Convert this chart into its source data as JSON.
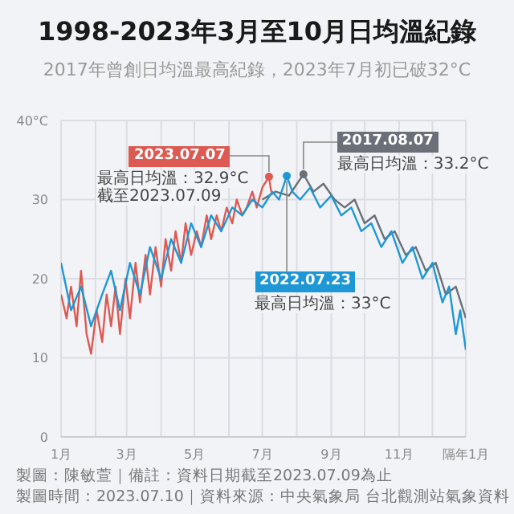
{
  "chart_data": {
    "type": "line",
    "title": "1998-2023年3月至10月日均溫紀錄",
    "subtitle": "2017年曾創日均溫最高紀錄，2023年7月初已破32°C",
    "xlim": [
      "--01-01",
      "--12-31"
    ],
    "xticks": [
      {
        "value": "--01-01",
        "label": "1月"
      },
      {
        "value": "--02-01",
        "label": null
      },
      {
        "value": "--03-01",
        "label": "3月"
      },
      {
        "value": "--04-01",
        "label": null
      },
      {
        "value": "--05-01",
        "label": "5月"
      },
      {
        "value": "--06-01",
        "label": null
      },
      {
        "value": "--07-01",
        "label": "7月"
      },
      {
        "value": "--08-01",
        "label": null
      },
      {
        "value": "--09-01",
        "label": "9月"
      },
      {
        "value": "--10-01",
        "label": null
      },
      {
        "value": "--11-01",
        "label": "11月"
      },
      {
        "value": "--12-01",
        "label": null
      },
      {
        "value": "--12-31",
        "label": "隔年1月"
      }
    ],
    "ylim": [
      0,
      40
    ],
    "yticks": [
      0,
      10,
      20,
      30,
      {
        "value": 40,
        "label": "40°C"
      }
    ],
    "grid": true,
    "marker": "none",
    "line_style": "solid",
    "series": [
      {
        "color": "#dc5a52",
        "x": [
          "--01-01",
          "--01-06",
          "--01-10",
          "--01-15",
          "--01-19",
          "--01-24",
          "--01-28",
          "--02-02",
          "--02-07",
          "--02-11",
          "--02-15",
          "--02-19",
          "--02-23",
          "--02-28",
          "--03-04",
          "--03-09",
          "--03-13",
          "--03-18",
          "--03-22",
          "--03-27",
          "--04-01",
          "--04-05",
          "--04-10",
          "--04-14",
          "--04-19",
          "--04-23",
          "--04-28",
          "--05-03",
          "--05-07",
          "--05-12",
          "--05-16",
          "--05-21",
          "--05-25",
          "--05-30",
          "--06-04",
          "--06-08",
          "--06-13",
          "--06-17",
          "--06-22",
          "--06-26",
          "--07-01",
          "--07-07",
          "--07-09"
        ],
        "values": [
          18,
          15,
          19,
          14,
          21,
          13,
          10.5,
          16,
          12,
          18,
          14,
          19,
          13,
          20,
          15,
          22,
          17,
          23,
          18,
          24,
          19,
          25,
          21,
          26,
          22,
          27,
          23,
          26,
          24,
          28,
          25,
          28,
          26,
          29,
          27,
          30,
          28,
          29,
          31,
          29,
          31.5,
          32.9,
          31
        ]
      },
      {
        "color": "#6b6f78",
        "x": [
          "--07-01",
          "--07-13",
          "--07-25",
          "--08-07",
          "--08-16",
          "--08-25",
          "--09-04",
          "--09-13",
          "--09-22",
          "--10-01",
          "--10-10",
          "--10-19",
          "--10-28",
          "--11-07",
          "--11-16",
          "--11-25",
          "--12-04",
          "--12-13",
          "--12-22",
          "--12-31"
        ],
        "values": [
          30,
          31,
          30.5,
          33.2,
          31,
          32,
          30,
          29,
          30,
          27,
          28,
          25,
          26,
          23,
          24,
          21,
          22,
          18,
          19,
          15
        ]
      },
      {
        "color": "#1d97d5",
        "x": [
          "--01-01",
          "--01-10",
          "--01-19",
          "--01-28",
          "--02-07",
          "--02-15",
          "--02-23",
          "--03-04",
          "--03-13",
          "--03-22",
          "--04-01",
          "--04-10",
          "--04-19",
          "--04-28",
          "--05-07",
          "--05-16",
          "--05-25",
          "--06-04",
          "--06-13",
          "--06-22",
          "--07-01",
          "--07-10",
          "--07-16",
          "--07-23",
          "--07-28",
          "--08-04",
          "--08-13",
          "--08-22",
          "--09-01",
          "--09-10",
          "--09-19",
          "--09-28",
          "--10-07",
          "--10-16",
          "--10-25",
          "--11-04",
          "--11-13",
          "--11-22",
          "--12-01",
          "--12-10",
          "--12-16",
          "--12-22",
          "--12-26",
          "--12-31"
        ],
        "values": [
          22,
          16,
          19,
          14,
          18,
          21,
          16,
          22,
          18,
          24,
          20,
          25,
          22,
          27,
          24,
          28,
          26,
          29,
          28,
          30,
          29,
          31,
          30,
          33,
          31,
          30,
          31.5,
          29,
          30.5,
          28,
          29,
          26,
          27,
          24,
          26,
          22,
          24,
          20,
          22,
          17,
          19,
          13,
          16,
          11
        ]
      }
    ],
    "annotations": [
      {
        "text": "2023.07.07",
        "x": "--07-07",
        "y": 32.9
      },
      "最高日均溫：32.9°C",
      "截至2023.07.09",
      {
        "text": "2017.08.07",
        "x": "--08-07",
        "y": 33.2
      },
      "最高日均溫：33.2°C",
      {
        "text": "2022.07.23",
        "x": "--07-23",
        "y": 33
      },
      "最高日均溫：33°C",
      "製圖：陳敏萱｜備註：資料日期截至2023.07.09為止",
      "製圖時間：2023.07.10｜資料來源：中央氣象局 台北觀測站氣象資料"
    ]
  }
}
